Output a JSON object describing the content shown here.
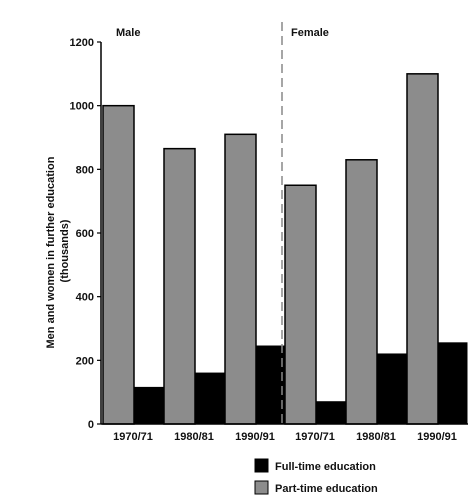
{
  "chart_data": {
    "type": "bar",
    "ylabel_line1": "Men and women in further education",
    "ylabel_line2": "(thousands)",
    "ylim": [
      0,
      1200
    ],
    "yticks": [
      "0",
      "200",
      "400",
      "600",
      "800",
      "1000",
      "1200"
    ],
    "grid": false,
    "legend_position": "bottom-right",
    "groups": [
      {
        "name": "Male",
        "categories": [
          "1970/71",
          "1980/81",
          "1990/91"
        ],
        "series": [
          {
            "name": "Part-time education",
            "color": "#8c8c8c",
            "values": [
              1000,
              865,
              910
            ]
          },
          {
            "name": "Full-time education",
            "color": "#000000",
            "values": [
              115,
              160,
              245
            ]
          }
        ]
      },
      {
        "name": "Female",
        "categories": [
          "1970/71",
          "1980/81",
          "1990/91"
        ],
        "series": [
          {
            "name": "Part-time education",
            "color": "#8c8c8c",
            "values": [
              750,
              830,
              1100
            ]
          },
          {
            "name": "Full-time education",
            "color": "#000000",
            "values": [
              70,
              220,
              255
            ]
          }
        ]
      }
    ],
    "legend": [
      {
        "label": "Full-time education",
        "color": "#000000"
      },
      {
        "label": "Part-time education",
        "color": "#8c8c8c"
      }
    ]
  }
}
